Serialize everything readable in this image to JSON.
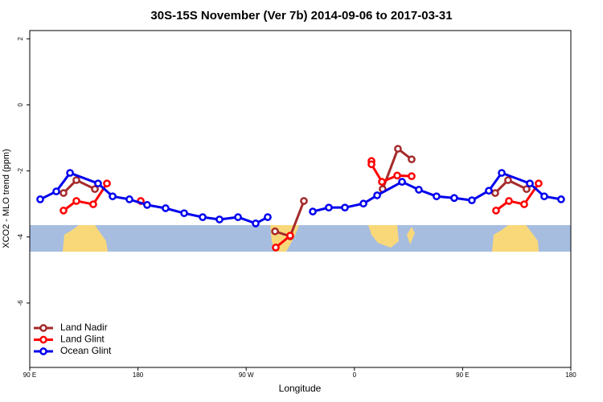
{
  "chart_data": {
    "type": "line",
    "title": "30S-15S November (Ver 7b)   2014-09-06 to 2017-03-31",
    "xlabel": "Longitude",
    "ylabel": "XCO2 - MLO trend (ppm)",
    "xlim": [
      90,
      540
    ],
    "ylim": [
      -7.95,
      2.25
    ],
    "xticks": [
      {
        "value": 90,
        "label": "90 E"
      },
      180,
      {
        "value": 270,
        "label": "90 W"
      },
      {
        "value": 360,
        "label": "0"
      },
      {
        "value": 450,
        "label": "90 E"
      },
      {
        "value": 540,
        "label": "180"
      }
    ],
    "yticks": [
      -6,
      -4,
      -2,
      0,
      2
    ],
    "legend": "bottom-left",
    "series": [
      {
        "name": "Land Nadir",
        "color": "#a52a2a",
        "x": [
          118.1,
          128.8,
          144.2,
          null,
          294.0,
          306.6,
          318.0,
          null,
          383.5,
          396.2,
          407.6,
          null,
          477.1,
          487.8,
          503.2
        ],
        "values": [
          -2.67,
          -2.28,
          -2.55,
          null,
          -3.83,
          -3.98,
          -2.91,
          null,
          -2.55,
          -1.33,
          -1.65,
          null,
          -2.67,
          -2.28,
          -2.55
        ]
      },
      {
        "name": "Land Glint",
        "color": "#ff0000",
        "x": [
          118.1,
          128.8,
          142.8,
          154.2,
          null,
          182.3,
          null,
          294.6,
          306.6,
          null,
          374.2,
          374.2,
          382.9,
          395.6,
          407.6,
          null,
          477.8,
          488.5,
          501.2,
          513.2
        ],
        "values": [
          -3.2,
          -2.91,
          -3.01,
          -2.38,
          null,
          -2.91,
          null,
          -4.32,
          -3.96,
          null,
          -1.7,
          -1.8,
          -2.33,
          -2.14,
          -2.16,
          null,
          -3.2,
          -2.91,
          -3.01,
          -2.38
        ]
      },
      {
        "name": "Ocean Glint",
        "color": "#0000ee",
        "x": [
          98.7,
          112.1,
          123.5,
          146.8,
          158.9,
          172.9,
          187.6,
          203.0,
          218.4,
          233.8,
          247.8,
          263.2,
          277.9,
          287.9,
          null,
          325.4,
          338.7,
          352.1,
          367.5,
          378.9,
          399.6,
          413.6,
          428.3,
          443.0,
          457.7,
          471.8,
          482.5,
          505.9,
          517.9,
          531.9
        ],
        "values": [
          -2.86,
          -2.62,
          -2.06,
          -2.38,
          -2.77,
          -2.86,
          -3.03,
          -3.13,
          -3.28,
          -3.4,
          -3.47,
          -3.4,
          -3.59,
          -3.4,
          null,
          -3.23,
          -3.11,
          -3.11,
          -2.99,
          -2.74,
          -2.33,
          -2.57,
          -2.77,
          -2.82,
          -2.89,
          -2.6,
          -2.06,
          -2.38,
          -2.77,
          -2.86
        ]
      }
    ]
  }
}
